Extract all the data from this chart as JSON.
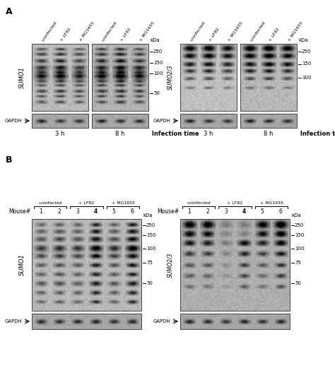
{
  "background_color": "#ffffff",
  "panel_A_label": "A",
  "panel_B_label": "B",
  "col_labels_3": [
    "uninfected",
    "+ LF82",
    "+ MG1655"
  ],
  "time_3h": "3 h",
  "time_8h": "8 h",
  "infection_time": "Infection time",
  "kda_label": "kDa",
  "sumo1_label": "SUMO1",
  "sumo23_label": "SUMO2/3",
  "gapdh_label": "GAPDH",
  "mouse_label": "Mouse#",
  "mouse_nums": [
    "1",
    "2",
    "3",
    "4",
    "5",
    "6"
  ],
  "mouse_bold": [
    false,
    false,
    false,
    true,
    false,
    false
  ],
  "group_labels": [
    "uninfected",
    "+ LF82",
    "+ MG1655"
  ],
  "kda_A_left": [
    "250",
    "150",
    "100",
    "50"
  ],
  "kda_A_right": [
    "250",
    "150",
    "100"
  ],
  "kda_B": [
    "250",
    "150",
    "100",
    "75",
    "50"
  ]
}
